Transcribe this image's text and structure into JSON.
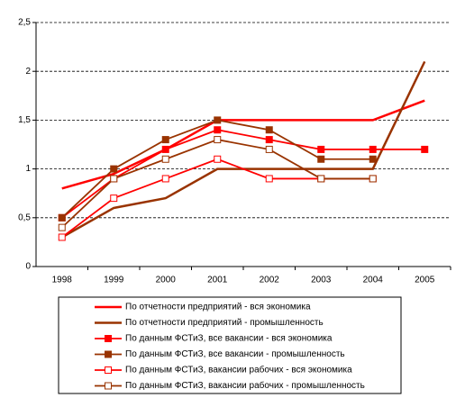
{
  "chart_data": {
    "type": "line",
    "categories": [
      "1998",
      "1999",
      "2000",
      "2001",
      "2002",
      "2003",
      "2004",
      "2005"
    ],
    "ylim": [
      0,
      2.5
    ],
    "yticks": [
      0,
      {
        "value": 0.5,
        "label": "0,5"
      },
      1,
      {
        "value": 1.5,
        "label": "1,5"
      },
      2,
      {
        "value": 2.5,
        "label": "2,5"
      }
    ],
    "grid": true,
    "legend": "bottom",
    "series": [
      {
        "name": "По отчетности предприятий - вся экономика",
        "color": "#ff0000",
        "marker": "none",
        "values": [
          0.8,
          0.95,
          1.2,
          1.5,
          1.5,
          1.5,
          1.5,
          1.7
        ]
      },
      {
        "name": "По отчетности предприятий - промышленность",
        "color": "#993300",
        "marker": "none",
        "values": [
          0.3,
          0.6,
          0.7,
          1.0,
          1.0,
          1.0,
          1.0,
          2.1
        ]
      },
      {
        "name": "По данным ФСТиЗ, все вакансии - вся экономика",
        "color": "#ff0000",
        "marker": "filled",
        "values": [
          0.5,
          0.9,
          1.2,
          1.4,
          1.3,
          1.2,
          1.2,
          1.2
        ]
      },
      {
        "name": "По данным ФСТиЗ, все вакансии - промышленность",
        "color": "#993300",
        "marker": "filled",
        "values": [
          0.5,
          1.0,
          1.3,
          1.5,
          1.4,
          1.1,
          1.1,
          null
        ]
      },
      {
        "name": "По данным ФСТиЗ, вакансии рабочих - вся экономика",
        "color": "#ff0000",
        "marker": "hollow",
        "values": [
          0.3,
          0.7,
          0.9,
          1.1,
          0.9,
          0.9,
          0.9,
          null
        ]
      },
      {
        "name": "По данным ФСТиЗ, вакансии рабочих - промышленность",
        "color": "#993300",
        "marker": "hollow",
        "values": [
          0.4,
          0.9,
          1.1,
          1.3,
          1.2,
          0.9,
          0.9,
          null
        ]
      }
    ]
  }
}
